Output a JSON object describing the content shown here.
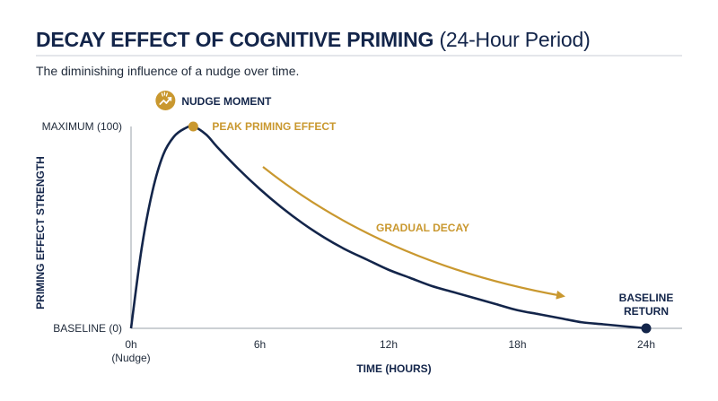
{
  "header": {
    "title_main": "DECAY EFFECT OF COGNITIVE PRIMING",
    "title_sub": "(24-Hour Period)",
    "subtitle": "The diminishing influence of a nudge over time."
  },
  "colors": {
    "curve": "#13254a",
    "accent": "#c9982f",
    "axis": "#9aa0a8"
  },
  "icons": {
    "nudge": "trending-up-sparkle-icon"
  },
  "chart_data": {
    "type": "line",
    "xlabel": "TIME (HOURS)",
    "ylabel": "PRIMING EFFECT STRENGTH",
    "xlim": [
      0,
      24
    ],
    "ylim": [
      0,
      100
    ],
    "x_ticks": [
      {
        "value": 0,
        "label": "0h",
        "sublabel": "(Nudge)"
      },
      {
        "value": 6,
        "label": "6h",
        "sublabel": ""
      },
      {
        "value": 12,
        "label": "12h",
        "sublabel": ""
      },
      {
        "value": 18,
        "label": "18h",
        "sublabel": ""
      },
      {
        "value": 24,
        "label": "24h",
        "sublabel": ""
      }
    ],
    "y_ticks": [
      {
        "value": 0,
        "label": "BASELINE (0)"
      },
      {
        "value": 100,
        "label": "MAXIMUM (100)"
      }
    ],
    "series": [
      {
        "x": [
          0,
          0.5,
          1,
          1.5,
          2,
          2.5,
          2.9,
          3.5,
          4,
          5,
          6,
          7,
          8,
          9,
          10,
          11,
          12,
          13,
          14,
          15,
          16,
          17,
          18,
          19,
          20,
          21,
          22,
          23,
          24
        ],
        "y": [
          0,
          40,
          68,
          86,
          95,
          99,
          100,
          96,
          90,
          79,
          69,
          60,
          52,
          45,
          39,
          34,
          29,
          25,
          21,
          18,
          15,
          12,
          9,
          7,
          5,
          3,
          2,
          1,
          0
        ]
      }
    ],
    "annotations": {
      "nudge": "NUDGE MOMENT",
      "peak": "PEAK PRIMING EFFECT",
      "decay": "GRADUAL DECAY",
      "baseline_line1": "BASELINE",
      "baseline_line2": "RETURN"
    },
    "grid": false,
    "legend": "none"
  }
}
